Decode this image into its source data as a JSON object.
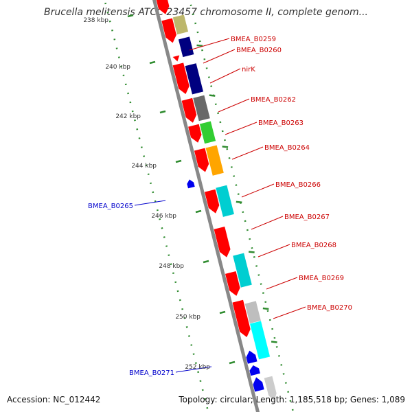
{
  "header": {
    "title": "Brucella melitensis ATCC 23457 chromosome II, complete genom..."
  },
  "footer": {
    "accession": "Accession: NC_012442",
    "summary": "Topology: circular; Length: 1,185,518 bp; Genes: 1,089"
  },
  "colors": {
    "backbone": "#888888",
    "tick": "#2e8b2e",
    "forward_gene": "#ff0000",
    "reverse_gene": "#0000ee",
    "cog_tan": "#bdb76b",
    "cog_navy": "#000080",
    "cog_gray": "#696969",
    "cog_green": "#32cd32",
    "cog_orange": "#ffa500",
    "cog_cyan": "#00ced1",
    "cog_light_gray": "#bebebe",
    "cog_aqua": "#00ffff",
    "label_forward": "#cc0000",
    "label_reverse": "#0000cc"
  },
  "scale_labels": [
    "238 kbp",
    "240 kbp",
    "242 kbp",
    "244 kbp",
    "246 kbp",
    "248 kbp",
    "250 kbp",
    "252 kbp"
  ],
  "gene_labels": [
    {
      "text": "BMEA_B0259",
      "strand": "forward"
    },
    {
      "text": "BMEA_B0260",
      "strand": "forward"
    },
    {
      "text": "nirK",
      "strand": "forward"
    },
    {
      "text": "BMEA_B0262",
      "strand": "forward"
    },
    {
      "text": "BMEA_B0263",
      "strand": "forward"
    },
    {
      "text": "BMEA_B0264",
      "strand": "forward"
    },
    {
      "text": "BMEA_B0266",
      "strand": "forward"
    },
    {
      "text": "BMEA_B0267",
      "strand": "forward"
    },
    {
      "text": "BMEA_B0268",
      "strand": "forward"
    },
    {
      "text": "BMEA_B0269",
      "strand": "forward"
    },
    {
      "text": "BMEA_B0270",
      "strand": "forward"
    },
    {
      "text": "BMEA_B0265",
      "strand": "reverse"
    },
    {
      "text": "BMEA_B0271",
      "strand": "reverse"
    }
  ]
}
